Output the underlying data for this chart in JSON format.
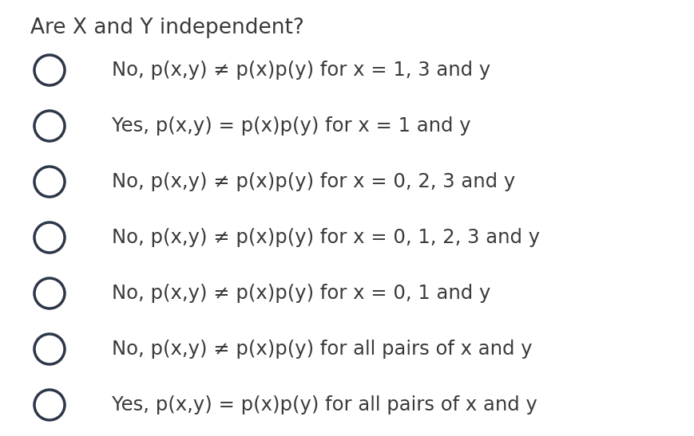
{
  "title": "Are X and Y independent?",
  "title_color": "#3a3a3a",
  "background_color": "#ffffff",
  "circle_color": "#2d3748",
  "circle_linewidth": 2.5,
  "text_color": "#3a3a3a",
  "options": [
    "No, p(x,y) ≠ p(x)p(y) for x = 1, 3 and y",
    "Yes, p(x,y) = p(x)p(y) for x = 1 and y",
    "No, p(x,y) ≠ p(x)p(y) for x = 0, 2, 3 and y",
    "No, p(x,y) ≠ p(x)p(y) for x = 0, 1, 2, 3 and y",
    "No, p(x,y) ≠ p(x)p(y) for x = 0, 1 and y",
    "No, p(x,y) ≠ p(x)p(y) for all pairs of x and y",
    "Yes, p(x,y) = p(x)p(y) for all pairs of x and y"
  ]
}
